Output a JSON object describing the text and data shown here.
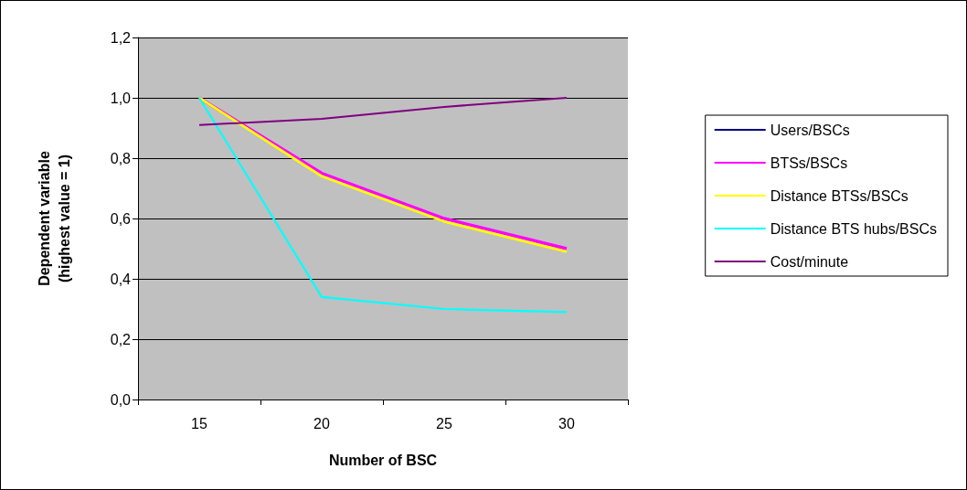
{
  "chart_data": {
    "type": "line",
    "xlabel": "Number of BSC",
    "ylabel": "Dependent variable\n(highest value = 1)",
    "categories": [
      "15",
      "20",
      "25",
      "30"
    ],
    "series": [
      {
        "name": "Users/BSCs",
        "color": "#000080",
        "values": [
          null,
          null,
          null,
          null
        ]
      },
      {
        "name": "BTSs/BSCs",
        "color": "#ff00ff",
        "values": [
          1.0,
          0.75,
          0.6,
          0.5
        ]
      },
      {
        "name": "Distance BTSs/BSCs",
        "color": "#ffff00",
        "values": [
          1.0,
          0.74,
          0.59,
          0.49
        ]
      },
      {
        "name": "Distance BTS hubs/BSCs",
        "color": "#00ffff",
        "values": [
          1.0,
          0.34,
          0.3,
          0.29
        ]
      },
      {
        "name": "Cost/minute",
        "color": "#800080",
        "values": [
          0.91,
          0.93,
          0.97,
          1.0
        ]
      }
    ],
    "ylim": [
      0,
      1.2
    ],
    "yticks": [
      {
        "value": 0,
        "label": "0,0"
      },
      {
        "value": 0.2,
        "label": "0,2"
      },
      {
        "value": 0.4,
        "label": "0,4"
      },
      {
        "value": 0.6,
        "label": "0,6"
      },
      {
        "value": 0.8,
        "label": "0,8"
      },
      {
        "value": 1.0,
        "label": "1,0"
      },
      {
        "value": 1.2,
        "label": "1,2"
      }
    ],
    "grid": "y",
    "legend": "right",
    "marker": "none",
    "line_style": "solid"
  }
}
